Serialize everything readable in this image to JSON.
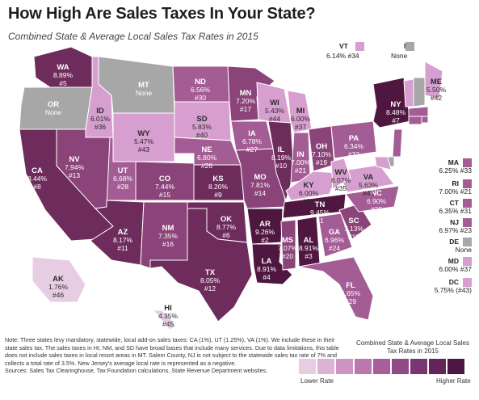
{
  "title": "How High Are Sales Taxes In Your  State?",
  "subtitle": "Combined State & Average Local Sales Tax Rates in 2015",
  "colors": {
    "lowest": "#e7cde4",
    "low": "#d79fcf",
    "midlow": "#c07cb6",
    "mid": "#a35c94",
    "midhigh": "#8b4479",
    "high": "#6e2c5c",
    "highest": "#4f1740",
    "none": "#a7a7a7"
  },
  "states": [
    {
      "abbr": "WA",
      "rate": "8.89%",
      "rank": "#5",
      "color": "high"
    },
    {
      "abbr": "OR",
      "rate": "None",
      "rank": "",
      "color": "none"
    },
    {
      "abbr": "CA",
      "rate": "8.44%",
      "rank": "#8",
      "color": "high"
    },
    {
      "abbr": "ID",
      "rate": "6.01%",
      "rank": "#36",
      "color": "low"
    },
    {
      "abbr": "NV",
      "rate": "7.94%",
      "rank": "#13",
      "color": "midhigh"
    },
    {
      "abbr": "MT",
      "rate": "None",
      "rank": "",
      "color": "none"
    },
    {
      "abbr": "WY",
      "rate": "5.47%",
      "rank": "#43",
      "color": "low"
    },
    {
      "abbr": "UT",
      "rate": "6.68%",
      "rank": "#28",
      "color": "mid"
    },
    {
      "abbr": "AZ",
      "rate": "8.17%",
      "rank": "#11",
      "color": "high"
    },
    {
      "abbr": "CO",
      "rate": "7.44%",
      "rank": "#15",
      "color": "midhigh"
    },
    {
      "abbr": "NM",
      "rate": "7.35%",
      "rank": "#16",
      "color": "midhigh"
    },
    {
      "abbr": "ND",
      "rate": "6.56%",
      "rank": "#30",
      "color": "mid"
    },
    {
      "abbr": "SD",
      "rate": "5.83%",
      "rank": "#40",
      "color": "low"
    },
    {
      "abbr": "NE",
      "rate": "6.80%",
      "rank": "#26",
      "color": "mid"
    },
    {
      "abbr": "KS",
      "rate": "8.20%",
      "rank": "#9",
      "color": "high"
    },
    {
      "abbr": "OK",
      "rate": "8.77%",
      "rank": "#6",
      "color": "high"
    },
    {
      "abbr": "TX",
      "rate": "8.05%",
      "rank": "#12",
      "color": "high"
    },
    {
      "abbr": "MN",
      "rate": "7.20%",
      "rank": "#17",
      "color": "midhigh"
    },
    {
      "abbr": "IA",
      "rate": "6.78%",
      "rank": "#27",
      "color": "mid"
    },
    {
      "abbr": "MO",
      "rate": "7.81%",
      "rank": "#14",
      "color": "midhigh"
    },
    {
      "abbr": "AR",
      "rate": "9.26%",
      "rank": "#2",
      "color": "highest"
    },
    {
      "abbr": "LA",
      "rate": "8.91%",
      "rank": "#4",
      "color": "highest"
    },
    {
      "abbr": "WI",
      "rate": "5.43%",
      "rank": "#44",
      "color": "low"
    },
    {
      "abbr": "IL",
      "rate": "8.19%",
      "rank": "#10",
      "color": "high"
    },
    {
      "abbr": "MI",
      "rate": "6.00%",
      "rank": "#37",
      "color": "low"
    },
    {
      "abbr": "IN",
      "rate": "7.00%",
      "rank": "#21",
      "color": "mid"
    },
    {
      "abbr": "OH",
      "rate": "7.10%",
      "rank": "#19",
      "color": "midhigh"
    },
    {
      "abbr": "KY",
      "rate": "6.00%",
      "rank": "#37",
      "color": "low"
    },
    {
      "abbr": "TN",
      "rate": "9.45%",
      "rank": "#1",
      "color": "highest"
    },
    {
      "abbr": "MS",
      "rate": "7.07%",
      "rank": "#20",
      "color": "midhigh"
    },
    {
      "abbr": "AL",
      "rate": "8.91%",
      "rank": "#3",
      "color": "highest"
    },
    {
      "abbr": "GA",
      "rate": "6.96%",
      "rank": "#24",
      "color": "mid"
    },
    {
      "abbr": "FL",
      "rate": "6.65%",
      "rank": "#29",
      "color": "mid"
    },
    {
      "abbr": "SC",
      "rate": "7.13%",
      "rank": "#18",
      "color": "midhigh"
    },
    {
      "abbr": "NC",
      "rate": "6.90%",
      "rank": "#25",
      "color": "mid"
    },
    {
      "abbr": "VA",
      "rate": "5.63%",
      "rank": "#41",
      "color": "low"
    },
    {
      "abbr": "WV",
      "rate": "6.07%",
      "rank": "#35",
      "color": "low"
    },
    {
      "abbr": "PA",
      "rate": "6.34%",
      "rank": "#32",
      "color": "mid"
    },
    {
      "abbr": "NY",
      "rate": "8.48%",
      "rank": "#7",
      "color": "highest"
    },
    {
      "abbr": "ME",
      "rate": "5.50%",
      "rank": "#42",
      "color": "low"
    },
    {
      "abbr": "AK",
      "rate": "1.76%",
      "rank": "#46",
      "color": "lowest"
    },
    {
      "abbr": "HI",
      "rate": "4.35%",
      "rank": "#45",
      "color": "lowest"
    }
  ],
  "callouts": [
    {
      "abbr": "VT",
      "rate": "6.14%",
      "rank": "#34",
      "color": "low"
    },
    {
      "abbr": "NH",
      "rate": "None",
      "rank": "",
      "color": "none"
    },
    {
      "abbr": "MA",
      "rate": "6.25%",
      "rank": "#33",
      "color": "mid"
    },
    {
      "abbr": "RI",
      "rate": "7.00%",
      "rank": "#21",
      "color": "mid"
    },
    {
      "abbr": "CT",
      "rate": "6.35%",
      "rank": "#31",
      "color": "mid"
    },
    {
      "abbr": "NJ",
      "rate": "6.97%",
      "rank": "#23",
      "color": "mid"
    },
    {
      "abbr": "DE",
      "rate": "None",
      "rank": "",
      "color": "none"
    },
    {
      "abbr": "MD",
      "rate": "6.00%",
      "rank": "#37",
      "color": "low"
    },
    {
      "abbr": "DC",
      "rate": "5.75%",
      "rank": "(#43)",
      "color": "low"
    }
  ],
  "note": "Note: Three states levy mandatory, statewide, local add-on sales taxes: CA (1%), UT (1.25%), VA (1%). We include these in their state sales tax. The sales taxes in HI, NM, and SD have broad bases that include many services. Due to data limitations, this table does not include sales taxes in local resort areas in MT. Salem County, NJ is not subject to the statewide sales tax rate of 7% and collects a total rate of 3.5%. New Jersey's average local rate is represented as a negative.",
  "sources": "Sources: Sales Tax Clearinghouse, Tax Foundation calculations, State Revenue Department websites.",
  "legend": {
    "title": "Combined State & Average Local Sales Tax Rates in 2015",
    "low_label": "Lower Rate",
    "high_label": "Higher Rate",
    "scale": [
      "#e7cde4",
      "#dcb2d6",
      "#cd94c4",
      "#bb78b0",
      "#a65f9b",
      "#914a86",
      "#7a3670",
      "#63255a",
      "#4d1745"
    ]
  }
}
